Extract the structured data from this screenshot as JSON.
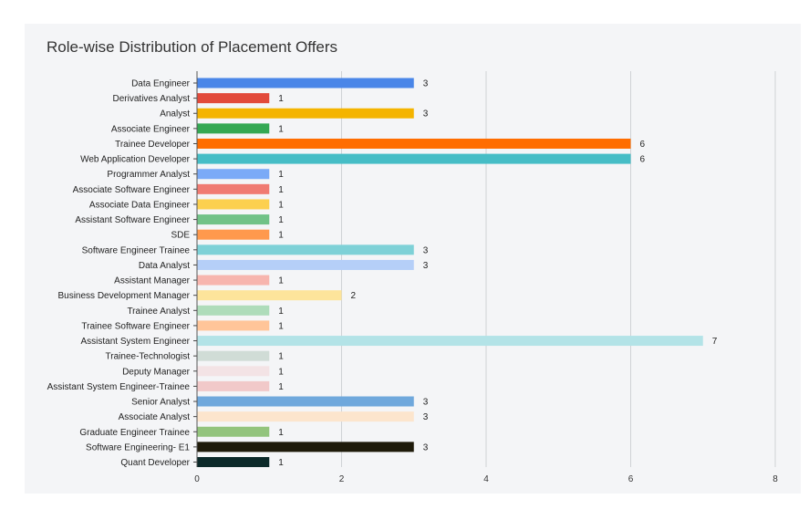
{
  "chart_data": {
    "type": "bar",
    "orientation": "horizontal",
    "title": "Role-wise Distribution of Placement Offers",
    "xlabel": "",
    "ylabel": "",
    "xlim": [
      0,
      8
    ],
    "xticks": [
      0,
      2,
      4,
      6,
      8
    ],
    "grid": true,
    "legend": "none",
    "categories": [
      "Data Engineer",
      "Derivatives Analyst",
      "Analyst",
      "Associate Engineer",
      "Trainee Developer",
      "Web Application Developer",
      "Programmer Analyst",
      "Associate Software Engineer",
      "Associate Data Engineer",
      "Assistant Software Engineer",
      "SDE",
      "Software Engineer Trainee",
      "Data Analyst",
      "Assistant Manager",
      "Business Development Manager",
      "Trainee Analyst",
      "Trainee Software Engineer",
      "Assistant System Engineer",
      "Trainee-Technologist",
      "Deputy Manager",
      "Assistant System Engineer-Trainee",
      "Senior Analyst",
      "Associate Analyst",
      "Graduate Engineer Trainee",
      "Software Engineering- E1",
      "Quant Developer"
    ],
    "values": [
      3,
      1,
      3,
      1,
      6,
      6,
      1,
      1,
      1,
      1,
      1,
      3,
      3,
      1,
      2,
      1,
      1,
      7,
      1,
      1,
      1,
      3,
      3,
      1,
      3,
      1
    ],
    "colors": [
      "#4a86e8",
      "#e24a3b",
      "#f4b400",
      "#34a853",
      "#ff6d00",
      "#46bdc6",
      "#7baaf7",
      "#f07b72",
      "#fcd04f",
      "#71c287",
      "#ff994d",
      "#7ed1d7",
      "#b5cff8",
      "#f7b5ae",
      "#fde49b",
      "#aedcba",
      "#ffc599",
      "#b3e3e7",
      "#d0dcd6",
      "#f3e3e5",
      "#f1c9c9",
      "#6fa8dc",
      "#fce5cd",
      "#93c47d",
      "#1e1a0a",
      "#0c2a2a"
    ]
  }
}
